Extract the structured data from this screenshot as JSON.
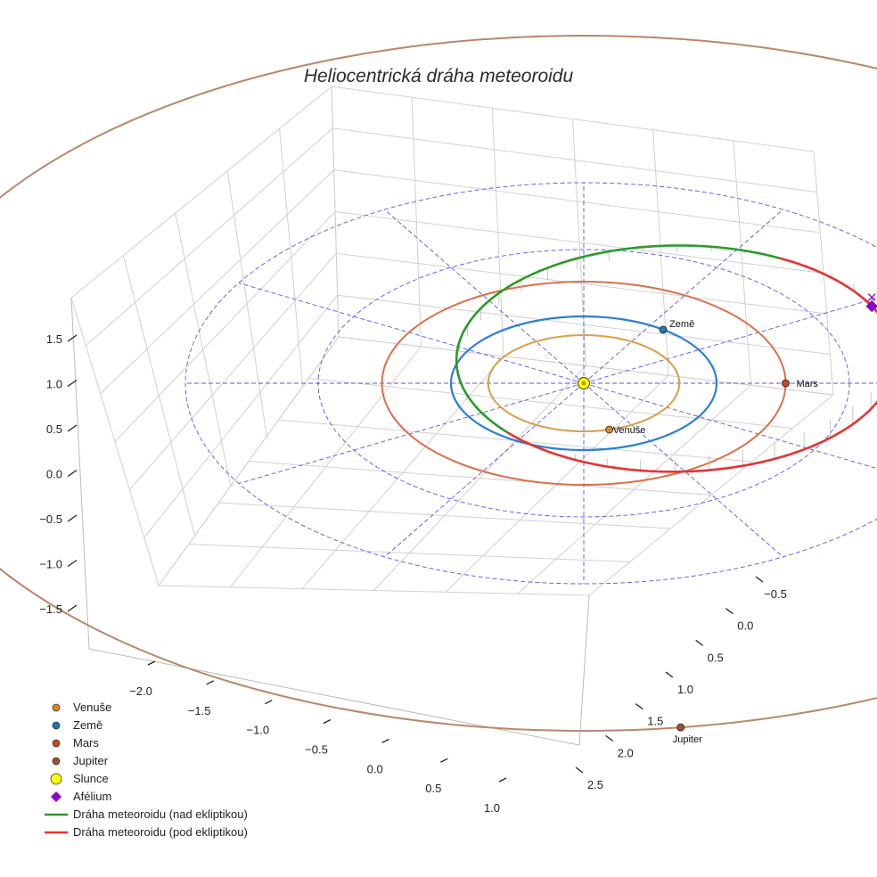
{
  "chart_data": {
    "type": "scatter",
    "title": "Heliocentrická dráha meteoroidu",
    "xlabel": "",
    "ylabel": "",
    "zlabel": "",
    "x_ticks": [
      "−2.0",
      "−1.5",
      "−1.0",
      "−0.5",
      "0.0",
      "0.5",
      "1.0"
    ],
    "y_ticks": [
      "−0.5",
      "0.0",
      "0.5",
      "1.0",
      "1.5",
      "2.0",
      "2.5"
    ],
    "z_ticks": [
      "1.5",
      "1.0",
      "0.5",
      "0.0",
      "−0.5",
      "−1.0",
      "−1.5"
    ],
    "ecliptic_rings_au": [
      1,
      2,
      3
    ],
    "planet_orbit_radii_au": {
      "Venuše": 0.72,
      "Země": 1.0,
      "Mars": 1.52,
      "Jupiter": 5.2
    },
    "planet_labels": [
      "Země",
      "Venuše",
      "Mars",
      "Jupiter"
    ],
    "legend_position": "lower-left",
    "grid": true,
    "series": [
      {
        "name": "Venuše",
        "marker": "circle",
        "color": "#d68a1e"
      },
      {
        "name": "Země",
        "marker": "circle",
        "color": "#1f77b4"
      },
      {
        "name": "Mars",
        "marker": "circle",
        "color": "#c84a1c"
      },
      {
        "name": "Jupiter",
        "marker": "circle",
        "color": "#a0522d"
      },
      {
        "name": "Slunce",
        "marker": "circle",
        "color": "#ffff00"
      },
      {
        "name": "Afélium",
        "marker": "diamond",
        "color": "#9400d3"
      },
      {
        "name": "Dráha meteoroidu (nad ekliptikou)",
        "marker": "line",
        "color": "#2a9a2a"
      },
      {
        "name": "Dráha meteoroidu (pod ekliptikou)",
        "marker": "line",
        "color": "#e83232"
      }
    ]
  },
  "colors": {
    "venus_orbit": "#d9a04a",
    "earth_orbit": "#2f7fd0",
    "mars_orbit": "#dd6e4a",
    "jupiter_orbit": "#b8876a",
    "ecliptic_grid": "#5555ee",
    "axis_grid": "#d0d0d0"
  }
}
